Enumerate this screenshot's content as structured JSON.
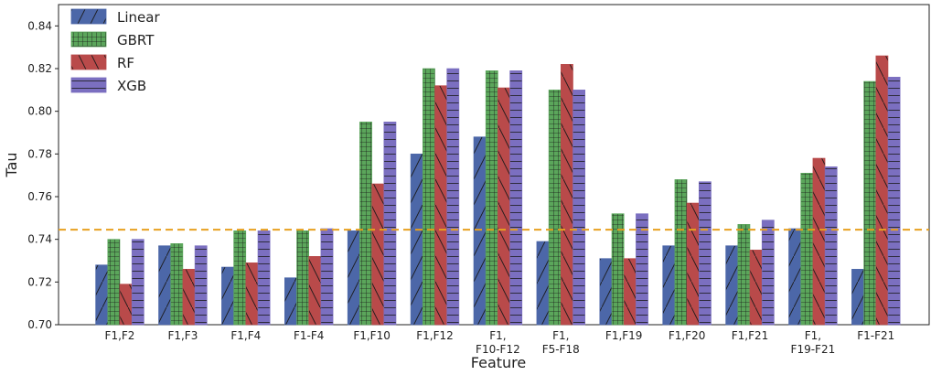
{
  "chart_data": {
    "type": "bar",
    "title": "",
    "xlabel": "Feature",
    "ylabel": "Tau",
    "ylim": [
      0.7,
      0.85
    ],
    "yticks": [
      0.7,
      0.72,
      0.74,
      0.76,
      0.78,
      0.8,
      0.82,
      0.84
    ],
    "ytick_labels": [
      "0.70",
      "0.72",
      "0.74",
      "0.76",
      "0.78",
      "0.80",
      "0.82",
      "0.84"
    ],
    "grid": false,
    "legend_position": "top-left",
    "categories": [
      [
        "F1,F2"
      ],
      [
        "F1,F3"
      ],
      [
        "F1,F4"
      ],
      [
        "F1-F4"
      ],
      [
        "F1,F10"
      ],
      [
        "F1,F12"
      ],
      [
        "F1,",
        "F10-F12"
      ],
      [
        "F1,",
        "F5-F18"
      ],
      [
        "F1,F19"
      ],
      [
        "F1,F20"
      ],
      [
        "F1,F21"
      ],
      [
        "F1,",
        "F19-F21"
      ],
      [
        "F1-F21"
      ]
    ],
    "series": [
      {
        "name": "Linear",
        "color": "#4c67a8",
        "hatch": "diagonal-forward",
        "values": [
          0.728,
          0.737,
          0.727,
          0.722,
          0.744,
          0.78,
          0.788,
          0.739,
          0.731,
          0.737,
          0.737,
          0.745,
          0.726
        ]
      },
      {
        "name": "GBRT",
        "color": "#5ba65b",
        "hatch": "grid",
        "values": [
          0.74,
          0.738,
          0.744,
          0.744,
          0.795,
          0.82,
          0.819,
          0.81,
          0.752,
          0.768,
          0.747,
          0.771,
          0.814
        ]
      },
      {
        "name": "RF",
        "color": "#b94a4a",
        "hatch": "diagonal-back",
        "values": [
          0.719,
          0.726,
          0.729,
          0.732,
          0.766,
          0.812,
          0.811,
          0.822,
          0.731,
          0.757,
          0.735,
          0.778,
          0.826
        ]
      },
      {
        "name": "XGB",
        "color": "#7b6fc0",
        "hatch": "horizontal",
        "values": [
          0.74,
          0.737,
          0.744,
          0.745,
          0.795,
          0.82,
          0.819,
          0.81,
          0.752,
          0.767,
          0.749,
          0.774,
          0.816
        ]
      }
    ],
    "reference_line": {
      "value": 0.7445,
      "color": "#e8a020",
      "style": "dashed"
    }
  }
}
